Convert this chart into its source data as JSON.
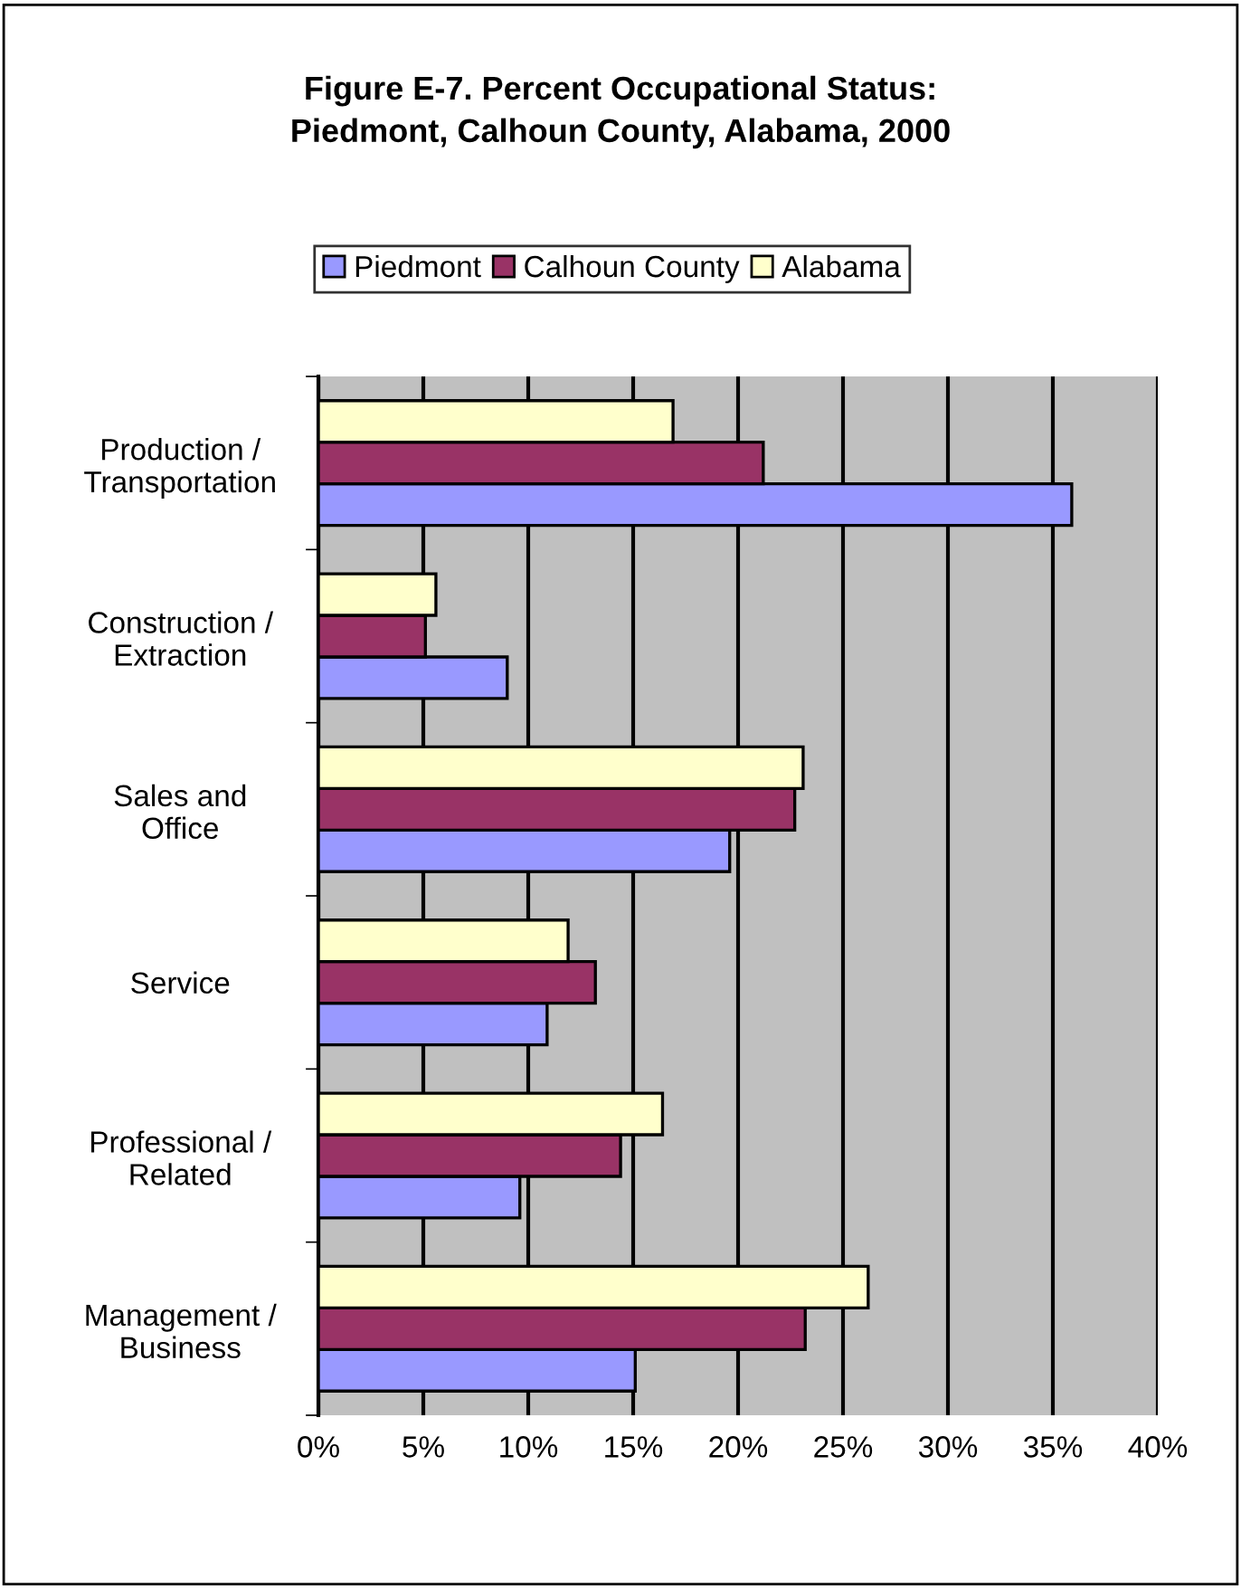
{
  "chart_data": {
    "type": "bar",
    "orientation": "horizontal",
    "title": "Figure E-7. Percent Occupational Status:\nPiedmont, Calhoun County, Alabama, 2000",
    "categories": [
      "Production /\nTransportation",
      "Construction /\nExtraction",
      "Sales and\nOffice",
      "Service",
      "Professional /\nRelated",
      "Management /\nBusiness"
    ],
    "series": [
      {
        "name": "Piedmont",
        "color": "#9999ff",
        "values": [
          35.9,
          9.0,
          19.6,
          10.9,
          9.6,
          15.1
        ]
      },
      {
        "name": "Calhoun County",
        "color": "#993366",
        "values": [
          21.2,
          5.1,
          22.7,
          13.2,
          14.4,
          23.2
        ]
      },
      {
        "name": "Alabama",
        "color": "#ffffcc",
        "values": [
          16.9,
          5.6,
          23.1,
          11.9,
          16.4,
          26.2
        ]
      }
    ],
    "xlim": [
      0,
      40
    ],
    "xticks": [
      {
        "value": 0,
        "label": "0%"
      },
      {
        "value": 5,
        "label": "5%"
      },
      {
        "value": 10,
        "label": "10%"
      },
      {
        "value": 15,
        "label": "15%"
      },
      {
        "value": 20,
        "label": "20%"
      },
      {
        "value": 25,
        "label": "25%"
      },
      {
        "value": 30,
        "label": "30%"
      },
      {
        "value": 35,
        "label": "35%"
      },
      {
        "value": 40,
        "label": "40%"
      }
    ],
    "grid": "x",
    "legend": "top"
  }
}
